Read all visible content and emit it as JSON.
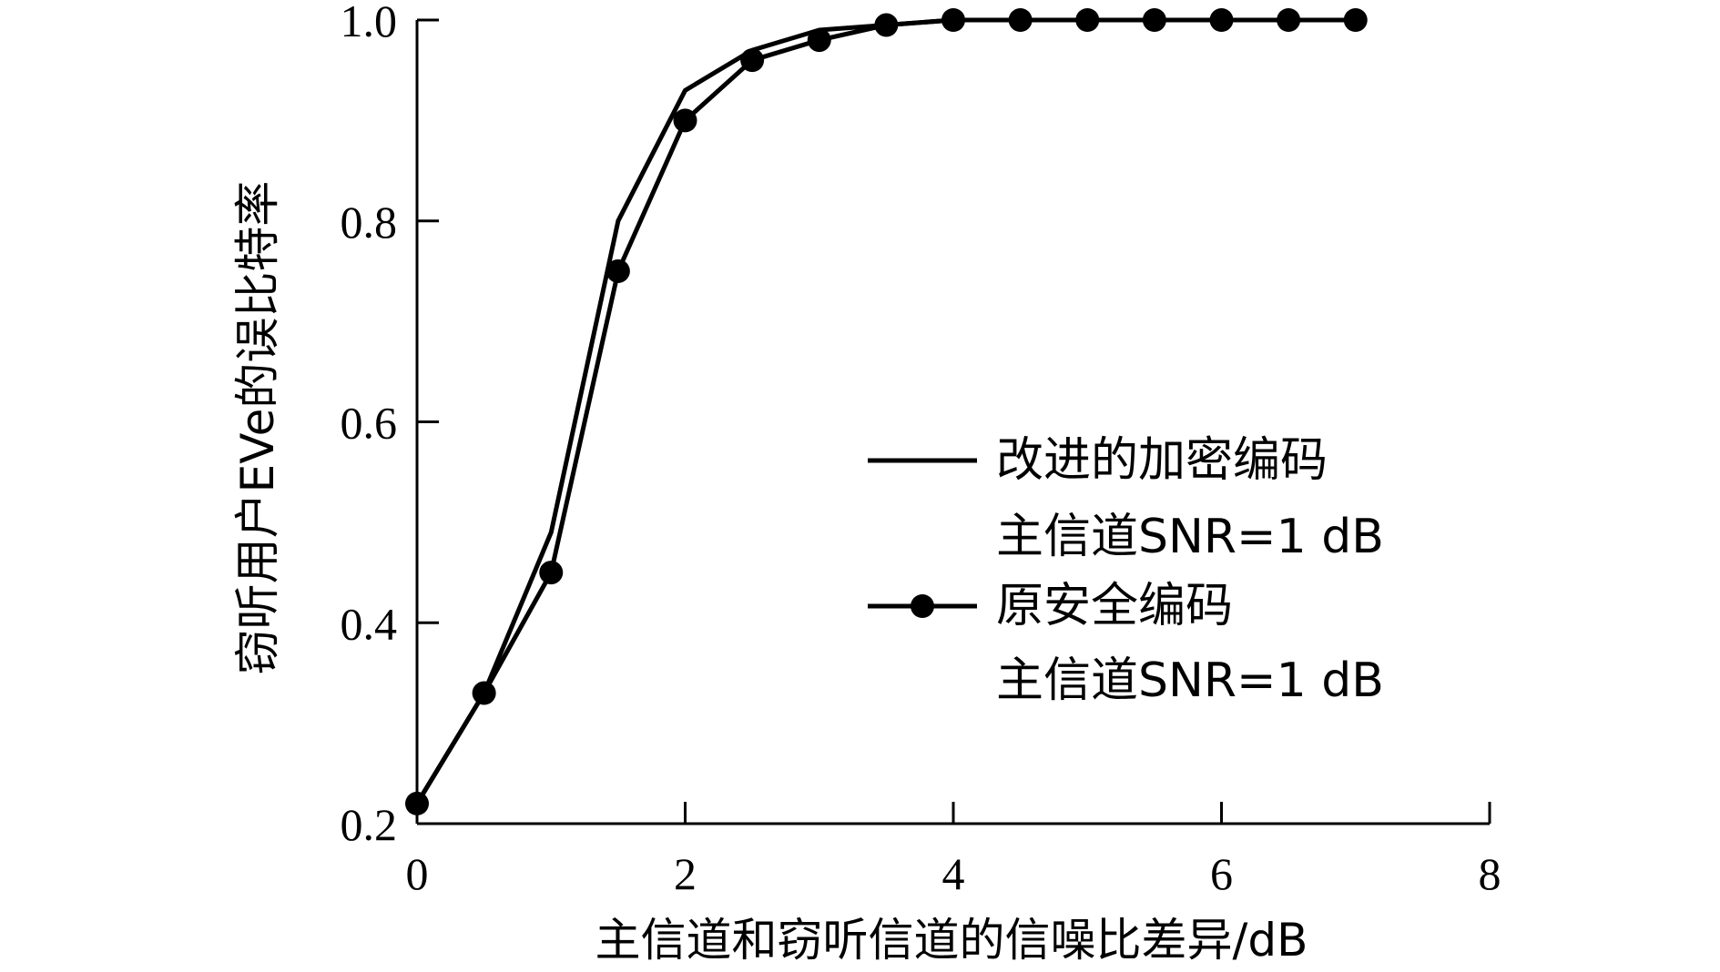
{
  "chart_data": {
    "type": "line",
    "title": "",
    "xlabel": "主信道和窃听信道的信噪比差异/dB",
    "ylabel": "窃听用户EVe的误比特率",
    "xlim": [
      0,
      8
    ],
    "ylim": [
      0.2,
      1.0
    ],
    "xticks": [
      0,
      2,
      4,
      6,
      8
    ],
    "yticks": [
      0.2,
      0.4,
      0.6,
      0.8,
      1.0
    ],
    "xtick_labels": [
      "0",
      "2",
      "4",
      "6",
      "8"
    ],
    "ytick_labels": [
      "0.2",
      "0.4",
      "0.6",
      "0.8",
      "1.0"
    ],
    "grid": false,
    "legend_position": "right",
    "series": [
      {
        "name": "改进的加密编码",
        "name_line2": "主信道SNR=1 dB",
        "marker": "none",
        "color": "#000000",
        "x": [
          0,
          0.5,
          1,
          1.5,
          2,
          2.5,
          3,
          3.5,
          4,
          4.5,
          5,
          5.5,
          6,
          6.5,
          7
        ],
        "y": [
          0.22,
          0.33,
          0.49,
          0.8,
          0.93,
          0.97,
          0.99,
          0.995,
          1.0,
          1.0,
          1.0,
          1.0,
          1.0,
          1.0,
          1.0
        ]
      },
      {
        "name": "原安全编码",
        "name_line2": "主信道SNR=1 dB",
        "marker": "circle",
        "color": "#000000",
        "x": [
          0,
          0.5,
          1,
          1.5,
          2,
          2.5,
          3,
          3.5,
          4,
          4.5,
          5,
          5.5,
          6,
          6.5,
          7
        ],
        "y": [
          0.22,
          0.33,
          0.45,
          0.75,
          0.9,
          0.96,
          0.98,
          0.995,
          1.0,
          1.0,
          1.0,
          1.0,
          1.0,
          1.0,
          1.0
        ]
      }
    ]
  }
}
